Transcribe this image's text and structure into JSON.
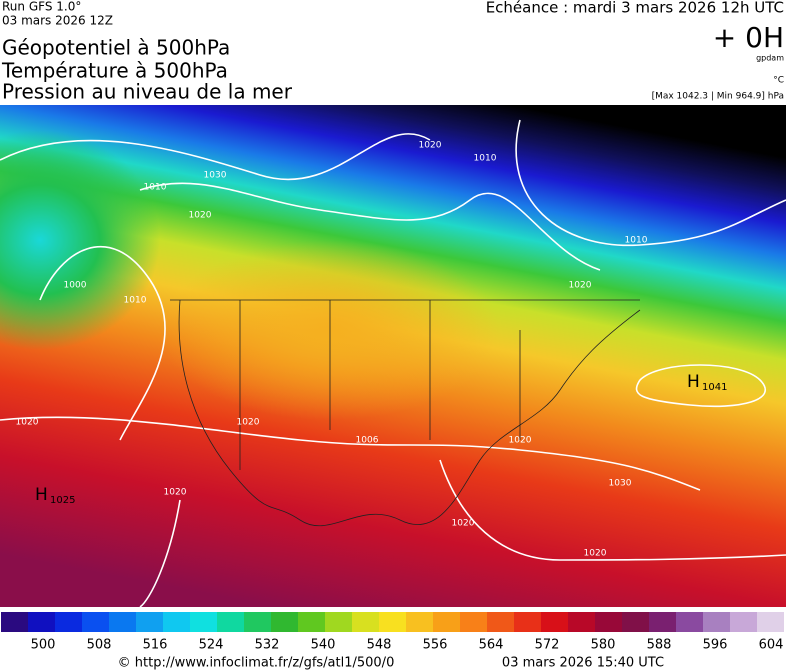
{
  "header": {
    "run": "Run GFS 1.0°",
    "run_date": "03 mars 2026 12Z",
    "titles": [
      "Géopotentiel à 500hPa",
      "Température à 500hPa",
      "Pression au niveau de la mer"
    ],
    "echeance": "Echéance : mardi 3 mars 2026 12h UTC",
    "lead": "+ 0H",
    "unit_geo": "gpdam",
    "unit_temp": "°C",
    "maxmin": "[Max 1042.3 | Min 964.9] hPa"
  },
  "map": {
    "isobar_labels": [
      "1020",
      "1010",
      "1030",
      "1010",
      "1020",
      "1000",
      "1010",
      "1020",
      "1010",
      "1020",
      "1020",
      "1006",
      "1020",
      "1030",
      "1020",
      "1020",
      "1020"
    ],
    "pressure_centers": [
      {
        "letter": "H",
        "value": "1041"
      },
      {
        "letter": "H",
        "value": "1025"
      }
    ]
  },
  "colorbar": {
    "labels": [
      "500",
      "508",
      "516",
      "524",
      "532",
      "540",
      "548",
      "556",
      "564",
      "572",
      "580",
      "588",
      "596",
      "604"
    ]
  },
  "footer": {
    "url": "© http://www.infoclimat.fr/z/gfs/atl1/500/0",
    "timestamp": "03 mars 2026 15:40 UTC"
  }
}
